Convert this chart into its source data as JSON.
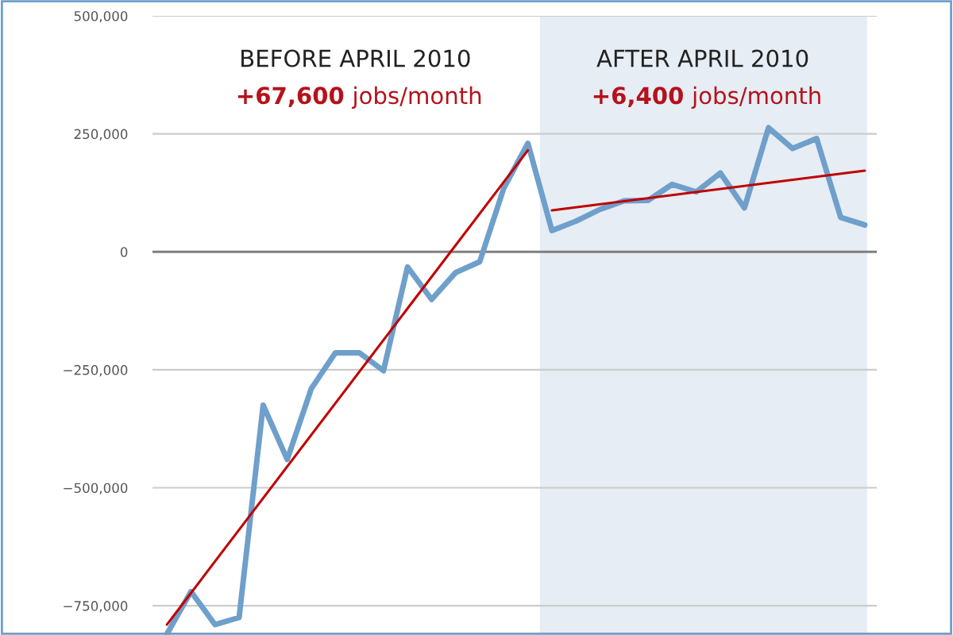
{
  "chart_data": {
    "type": "line",
    "categories": [
      null,
      null,
      null,
      null,
      null,
      null,
      null,
      null,
      null,
      null,
      null,
      null,
      null,
      null,
      null,
      null,
      null,
      null,
      null,
      null,
      null,
      null,
      null,
      null,
      null,
      null,
      null,
      null,
      null,
      null
    ],
    "series": [
      {
        "color": "#6f9fcb",
        "values": [
          -810000,
          -720000,
          -790000,
          -775000,
          -325000,
          -440000,
          -290000,
          -214000,
          -214000,
          -252000,
          -32000,
          -101000,
          -44000,
          -21000,
          135000,
          230000,
          45000,
          65000,
          90000,
          108000,
          109000,
          143000,
          127000,
          167000,
          93000,
          263000,
          219000,
          240000,
          73000,
          57000
        ]
      },
      {
        "type": "line",
        "color": "#c00000",
        "values": [
          -790000,
          null,
          null,
          null,
          null,
          null,
          null,
          null,
          null,
          null,
          null,
          null,
          null,
          null,
          null,
          215000,
          null,
          null,
          null,
          null,
          null,
          null,
          null,
          null,
          null,
          null,
          null,
          null,
          null,
          null
        ]
      },
      {
        "type": "line",
        "color": "#c00000",
        "values": [
          null,
          null,
          null,
          null,
          null,
          null,
          null,
          null,
          null,
          null,
          null,
          null,
          null,
          null,
          null,
          null,
          88000,
          null,
          null,
          null,
          null,
          null,
          null,
          null,
          null,
          null,
          null,
          null,
          null,
          172000
        ]
      }
    ],
    "ylim": [
      -812000,
      500000
    ],
    "yticks": [
      {
        "value": 500000,
        "label": "500,000"
      },
      {
        "value": 250000,
        "label": "250,000"
      },
      0,
      {
        "value": -250000,
        "label": "−250,000"
      },
      {
        "value": -500000,
        "label": "−500,000"
      },
      {
        "value": -750000,
        "label": "−750,000"
      }
    ],
    "grid": "y",
    "tick_labels": "y",
    "ref_lines": [
      {
        "axis": "y",
        "value": 0,
        "color": "#808080"
      }
    ],
    "annotations": [
      "BEFORE APRIL 2010",
      "+67,600",
      "jobs/month",
      "AFTER APRIL 2010",
      "+6,400",
      "jobs/month"
    ]
  }
}
